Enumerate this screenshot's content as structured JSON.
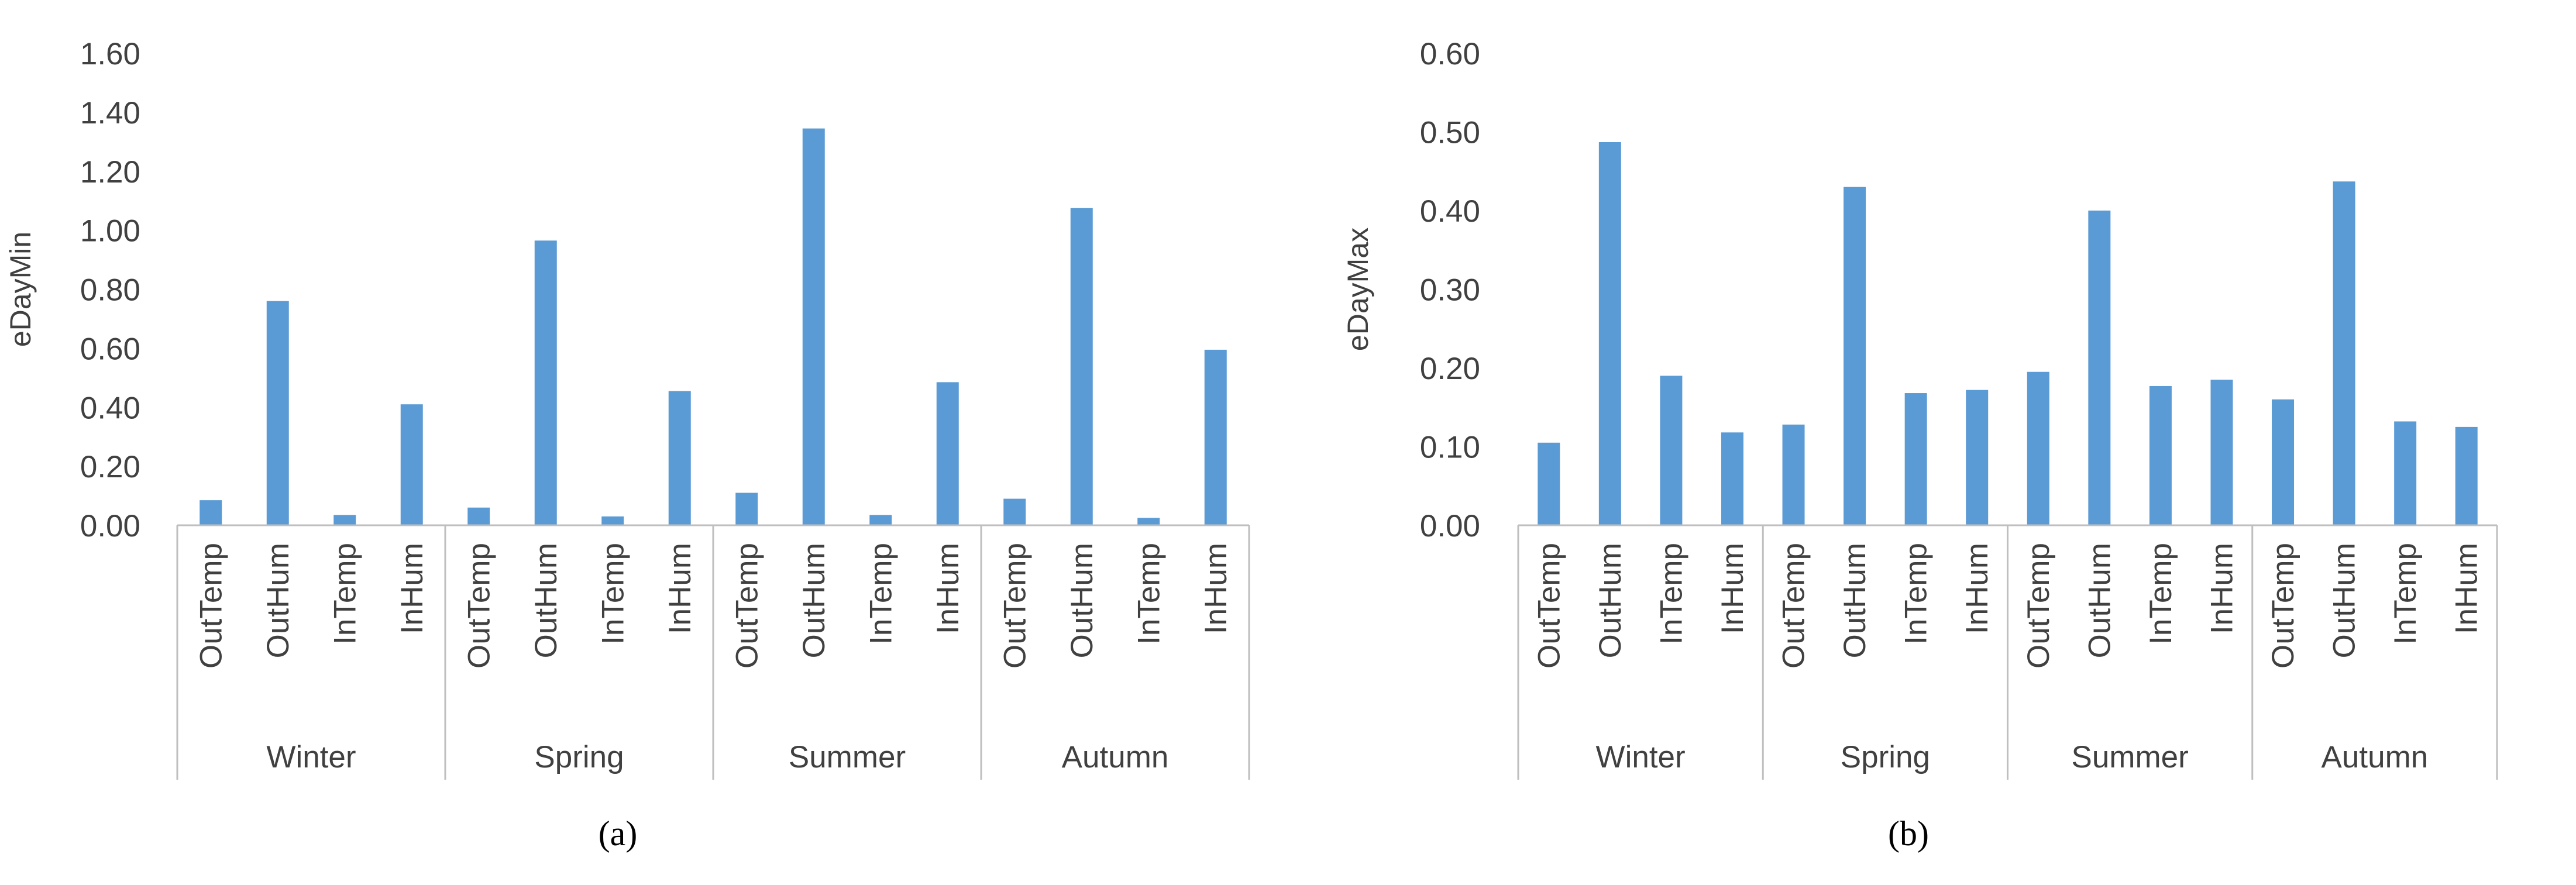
{
  "colors": {
    "bar": "#5B9BD5",
    "axis": "#BFBFBF",
    "text": "#404040",
    "caption": "#000000"
  },
  "chart_data": [
    {
      "type": "bar",
      "ylabel": "eDayMin",
      "ylim": [
        0,
        1.6
      ],
      "yticks": [
        "0.00",
        "0.20",
        "0.40",
        "0.60",
        "0.80",
        "1.00",
        "1.20",
        "1.40",
        "1.60"
      ],
      "groups": [
        "Winter",
        "Spring",
        "Summer",
        "Autumn"
      ],
      "categories": [
        "OutTemp",
        "OutHum",
        "InTemp",
        "InHum"
      ],
      "values": [
        [
          0.085,
          0.76,
          0.035,
          0.41
        ],
        [
          0.06,
          0.965,
          0.03,
          0.455
        ],
        [
          0.11,
          1.345,
          0.035,
          0.485
        ],
        [
          0.09,
          1.075,
          0.025,
          0.595
        ]
      ],
      "grid": false,
      "legend": "none",
      "caption": "(a)"
    },
    {
      "type": "bar",
      "ylabel": "eDayMax",
      "ylim": [
        0,
        0.6
      ],
      "yticks": [
        "0.00",
        "0.10",
        "0.20",
        "0.30",
        "0.40",
        "0.50",
        "0.60"
      ],
      "groups": [
        "Winter",
        "Spring",
        "Summer",
        "Autumn"
      ],
      "categories": [
        "OutTemp",
        "OutHum",
        "InTemp",
        "InHum"
      ],
      "values": [
        [
          0.105,
          0.487,
          0.19,
          0.118
        ],
        [
          0.128,
          0.43,
          0.168,
          0.172
        ],
        [
          0.195,
          0.4,
          0.177,
          0.185
        ],
        [
          0.16,
          0.437,
          0.132,
          0.125
        ]
      ],
      "grid": false,
      "legend": "none",
      "caption": "(b)"
    }
  ]
}
